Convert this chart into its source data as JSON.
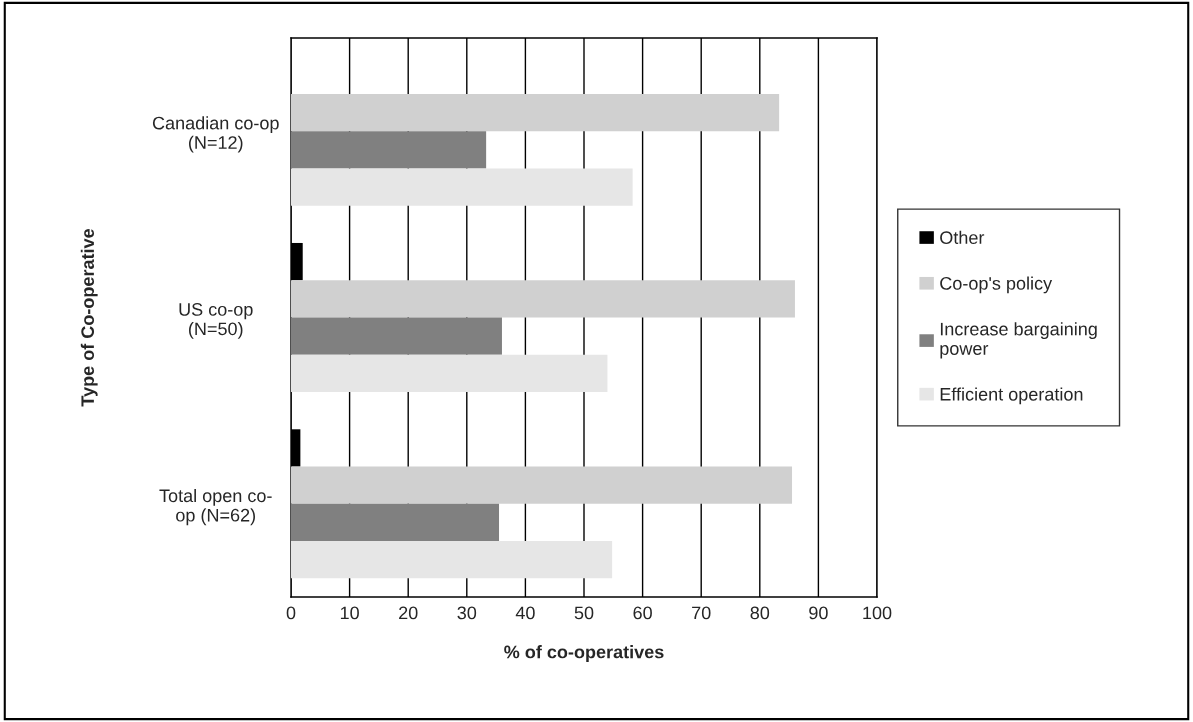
{
  "chart_data": {
    "type": "bar",
    "orientation": "horizontal",
    "xlabel": "% of co-operatives",
    "ylabel": "Type of Co-operative",
    "categories": [
      "Canadian co-op\n(N=12)",
      "US co-op\n(N=50)",
      "Total open co-\nop (N=62)"
    ],
    "series": [
      {
        "name": "Other",
        "color": "#000000",
        "values": [
          0,
          2,
          1.6
        ]
      },
      {
        "name": "Co-op's policy",
        "color": "#d0d0d0",
        "values": [
          83.3,
          86,
          85.5
        ]
      },
      {
        "name": "Increase bargaining\npower",
        "color": "#808080",
        "values": [
          33.3,
          36,
          35.5
        ]
      },
      {
        "name": "Efficient operation",
        "color": "#e6e6e6",
        "values": [
          58.3,
          54,
          54.8
        ]
      }
    ],
    "xlim": [
      0,
      100
    ],
    "xticks": [
      0,
      10,
      20,
      30,
      40,
      50,
      60,
      70,
      80,
      90,
      100
    ],
    "grid": "x",
    "legend": "right"
  }
}
